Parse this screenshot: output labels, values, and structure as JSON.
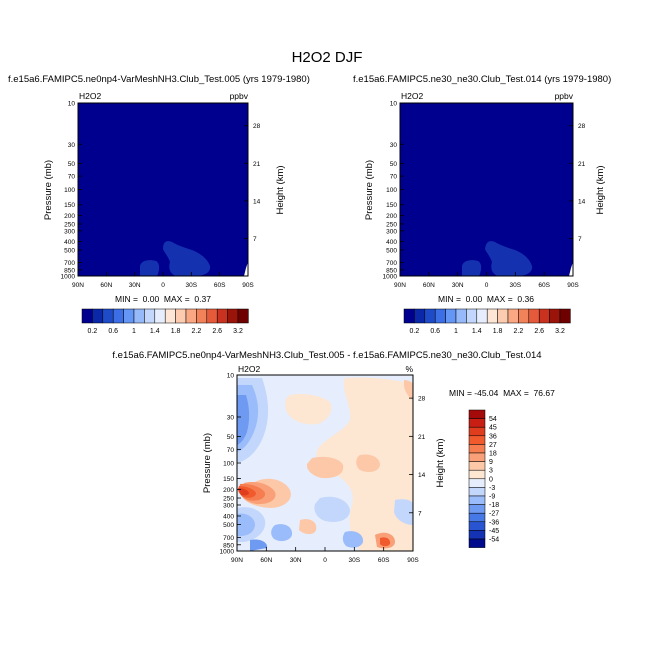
{
  "figure_title": "H2O2 DJF",
  "chart_data": [
    {
      "type": "heatmap",
      "title": "f.e15a6.FAMIPC5.ne0np4-VarMeshNH3.Club_Test.005 (yrs 1979-1980)",
      "variable_label": "H2O2",
      "units_label": "ppbv",
      "ylabel": "Pressure (mb)",
      "ylabel_right": "Height (km)",
      "x_ticks": [
        "90N",
        "60N",
        "30N",
        "0",
        "30S",
        "60S",
        "90S"
      ],
      "y_ticks": [
        "10",
        "30",
        "50",
        "70",
        "100",
        "150",
        "200",
        "250",
        "300",
        "400",
        "500",
        "700",
        "850",
        "1000"
      ],
      "y_ticks_right": [
        "28",
        "21",
        "14",
        "7"
      ],
      "stats_text": "MIN =  0.00  MAX =  0.37",
      "colorbar_labels": [
        "0.2",
        "0.6",
        "1",
        "1.4",
        "1.8",
        "2.2",
        "2.6",
        "3.2"
      ],
      "fill_color": "#00008f",
      "feature_color": "#1432b0"
    },
    {
      "type": "heatmap",
      "title": "f.e15a6.FAMIPC5.ne30_ne30.Club_Test.014 (yrs 1979-1980)",
      "variable_label": "H2O2",
      "units_label": "ppbv",
      "ylabel": "Pressure (mb)",
      "ylabel_right": "Height (km)",
      "x_ticks": [
        "90N",
        "60N",
        "30N",
        "0",
        "30S",
        "60S",
        "90S"
      ],
      "y_ticks": [
        "10",
        "30",
        "50",
        "70",
        "100",
        "150",
        "200",
        "250",
        "300",
        "400",
        "500",
        "700",
        "850",
        "1000"
      ],
      "y_ticks_right": [
        "28",
        "21",
        "14",
        "7"
      ],
      "stats_text": "MIN =  0.00  MAX =  0.36",
      "colorbar_labels": [
        "0.2",
        "0.6",
        "1",
        "1.4",
        "1.8",
        "2.2",
        "2.6",
        "3.2"
      ],
      "fill_color": "#00008f",
      "feature_color": "#1432b0"
    },
    {
      "type": "heatmap",
      "title": "f.e15a6.FAMIPC5.ne0np4-VarMeshNH3.Club_Test.005 - f.e15a6.FAMIPC5.ne30_ne30.Club_Test.014",
      "variable_label": "H2O2",
      "units_label": "%",
      "ylabel": "Pressure (mb)",
      "ylabel_right": "Height (km)",
      "x_ticks": [
        "90N",
        "60N",
        "30N",
        "0",
        "30S",
        "60S",
        "90S"
      ],
      "y_ticks": [
        "10",
        "30",
        "50",
        "70",
        "100",
        "150",
        "200",
        "250",
        "300",
        "400",
        "500",
        "700",
        "850",
        "1000"
      ],
      "y_ticks_right": [
        "28",
        "21",
        "14",
        "7"
      ],
      "stats_text": "MIN = -45.04  MAX =  76.67",
      "colorbar_labels": [
        "54",
        "45",
        "36",
        "27",
        "18",
        "9",
        "3",
        "0",
        "-3",
        "-9",
        "-18",
        "-27",
        "-36",
        "-45",
        "-54"
      ]
    }
  ],
  "colors": {
    "ppbv_colorbar": [
      "#00008f",
      "#0a28a8",
      "#1e4cc8",
      "#3c6ee6",
      "#6496f5",
      "#96b9fa",
      "#c3d7fc",
      "#e6eefd",
      "#fde6d6",
      "#fccbb0",
      "#f9a883",
      "#f2825a",
      "#e55a3a",
      "#c8321e",
      "#9a140a",
      "#6e0000"
    ],
    "diff_colorbar": [
      "#a50a0a",
      "#c81e14",
      "#e03c1e",
      "#f05a2d",
      "#f57d50",
      "#f9a078",
      "#fcc8a8",
      "#fde6d2",
      "#e6eefd",
      "#c3d7fc",
      "#9bbcfa",
      "#6e9af2",
      "#4678e6",
      "#2a55d2",
      "#1432b4",
      "#000a8c"
    ]
  }
}
